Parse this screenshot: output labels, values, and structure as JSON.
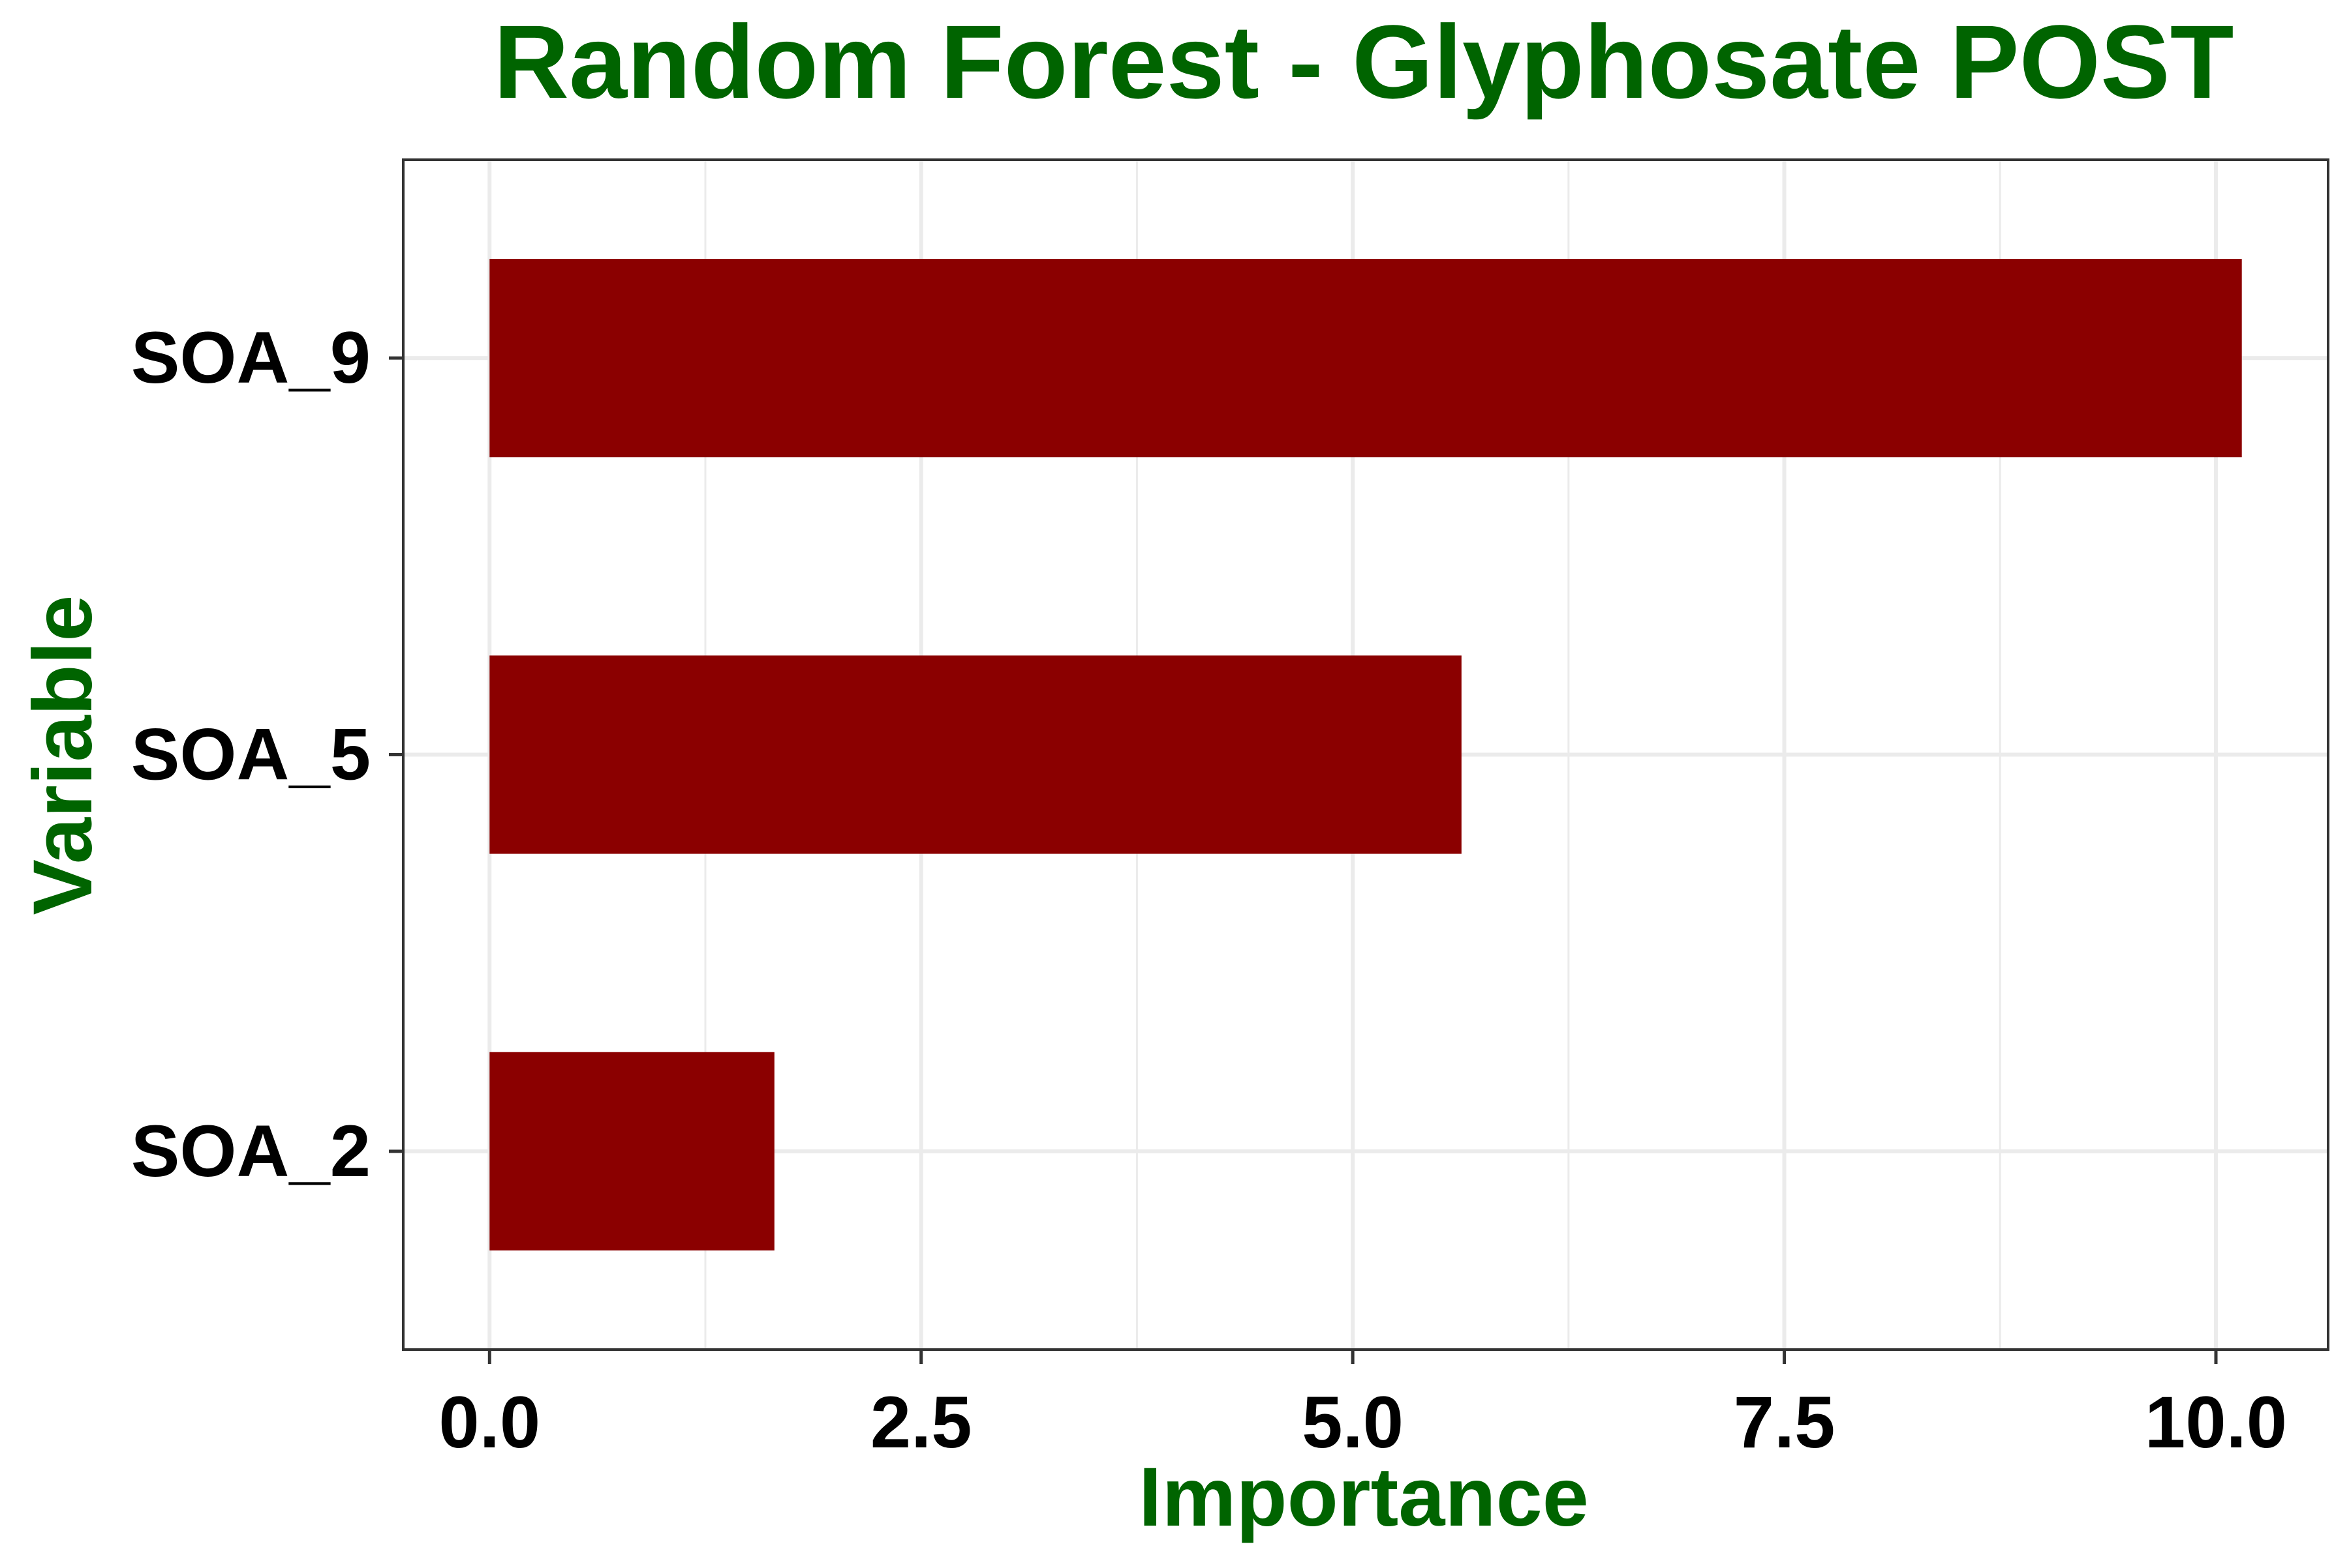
{
  "colors": {
    "title": "#006400",
    "bar": "#8B0000",
    "tick_text": "#000000",
    "grid": "#EBEBEB",
    "panel_border": "#333333",
    "background": "#FFFFFF"
  },
  "chart_data": {
    "type": "bar",
    "orientation": "horizontal",
    "title": "Random Forest - Glyphosate POST",
    "xlabel": "Importance",
    "ylabel": "Variable",
    "categories": [
      "SOA_9",
      "SOA_5",
      "SOA_2"
    ],
    "values": [
      10.15,
      5.63,
      1.65
    ],
    "xlim": [
      -0.5,
      10.65
    ],
    "xticks": [
      0.0,
      2.5,
      5.0,
      7.5,
      10.0
    ],
    "xtick_labels": [
      "0.0",
      "2.5",
      "5.0",
      "7.5",
      "10.0"
    ],
    "grid": true,
    "legend": "none"
  }
}
